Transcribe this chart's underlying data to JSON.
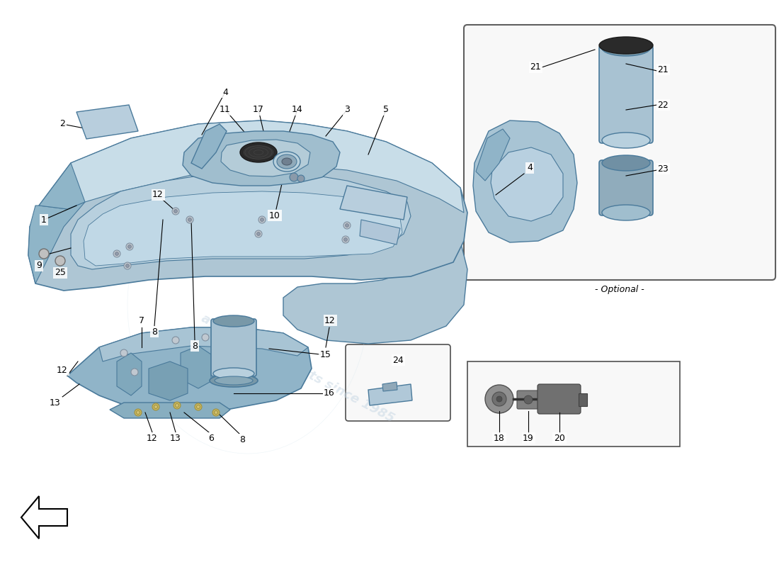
{
  "bg_color": "#ffffff",
  "lc": "#4a7a9b",
  "fc_light": "#aec6d4",
  "fc_mid": "#8fb5c8",
  "fc_dark": "#6a9ab0",
  "fc_top": "#c8dde8",
  "fc_white": "#ddeef5"
}
